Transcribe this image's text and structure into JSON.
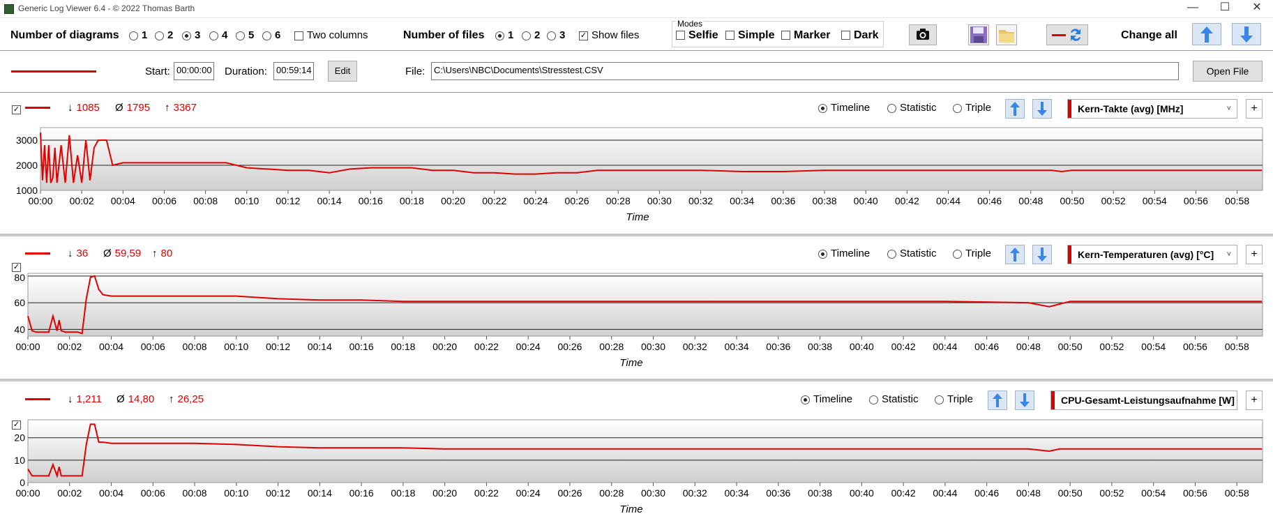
{
  "window": {
    "title": "Generic Log Viewer 6.4 - © 2022 Thomas Barth",
    "minimize": "—",
    "maximize": "☐",
    "close": "✕"
  },
  "toolbar": {
    "num_diagrams_label": "Number of diagrams",
    "diagram_options": [
      "1",
      "2",
      "3",
      "4",
      "5",
      "6"
    ],
    "diagram_selected": "3",
    "two_columns_label": "Two columns",
    "num_files_label": "Number of files",
    "file_options": [
      "1",
      "2",
      "3"
    ],
    "file_selected": "1",
    "show_files_label": "Show files",
    "modes_label": "Modes",
    "modes": [
      "Selfie",
      "Simple",
      "Marker",
      "Dark"
    ],
    "change_all_label": "Change all"
  },
  "filebar": {
    "start_label": "Start:",
    "start_value": "00:00:00",
    "duration_label": "Duration:",
    "duration_value": "00:59:14",
    "edit_label": "Edit",
    "file_label": "File:",
    "file_path": "C:\\Users\\NBC\\Documents\\Stresstest.CSV",
    "open_label": "Open File",
    "accent": "#e00000"
  },
  "panels": [
    {
      "min": "1085",
      "avg": "1795",
      "max": "3367",
      "min_sym": "↓",
      "avg_sym": "Ø",
      "max_sym": "↑",
      "mode_options": [
        "Timeline",
        "Statistic",
        "Triple"
      ],
      "mode_selected": "Timeline",
      "channel": "Kern-Takte (avg) [MHz]",
      "xlabel": "Time",
      "yticks": [
        "3000",
        "2000",
        "1000"
      ]
    },
    {
      "min": "36",
      "avg": "59,59",
      "max": "80",
      "min_sym": "↓",
      "avg_sym": "Ø",
      "max_sym": "↑",
      "mode_options": [
        "Timeline",
        "Statistic",
        "Triple"
      ],
      "mode_selected": "Timeline",
      "channel": "Kern-Temperaturen (avg) [°C]",
      "xlabel": "Time",
      "yticks": [
        "80",
        "60",
        "40"
      ]
    },
    {
      "min": "1,211",
      "avg": "14,80",
      "max": "26,25",
      "min_sym": "↓",
      "avg_sym": "Ø",
      "max_sym": "↑",
      "mode_options": [
        "Timeline",
        "Statistic",
        "Triple"
      ],
      "mode_selected": "Timeline",
      "channel": "CPU-Gesamt-Leistungsaufnahme [W]",
      "xlabel": "Time",
      "yticks": [
        "20",
        "10",
        "0"
      ]
    }
  ],
  "xticks": [
    "00:00",
    "00:02",
    "00:04",
    "00:06",
    "00:08",
    "00:10",
    "00:12",
    "00:14",
    "00:16",
    "00:18",
    "00:20",
    "00:22",
    "00:24",
    "00:26",
    "00:28",
    "00:30",
    "00:32",
    "00:34",
    "00:36",
    "00:38",
    "00:40",
    "00:42",
    "00:44",
    "00:46",
    "00:48",
    "00:50",
    "00:52",
    "00:54",
    "00:56",
    "00:58"
  ],
  "chart_data": [
    {
      "type": "line",
      "ylabel": "",
      "xlabel": "Time",
      "ylim": [
        1000,
        3500
      ],
      "x_unit": "minutes",
      "xlim": [
        0,
        59.23
      ],
      "x": [
        0,
        0.1,
        0.2,
        0.3,
        0.4,
        0.5,
        0.6,
        0.7,
        0.8,
        1.0,
        1.2,
        1.4,
        1.6,
        1.8,
        2.0,
        2.2,
        2.4,
        2.6,
        2.8,
        3.0,
        3.2,
        3.5,
        4,
        5,
        6,
        7,
        8,
        9,
        10,
        11,
        12,
        13,
        14,
        15,
        16,
        17,
        18,
        19,
        20,
        21,
        22,
        23,
        24,
        25,
        26,
        27,
        28,
        30,
        32,
        34,
        36,
        38,
        40,
        42,
        44,
        46,
        48,
        49,
        49.5,
        50,
        52,
        54,
        56,
        58,
        59.2
      ],
      "y": [
        3300,
        1400,
        2800,
        1300,
        2800,
        1300,
        1500,
        2700,
        1300,
        2800,
        1300,
        3200,
        1300,
        2400,
        1300,
        3000,
        1400,
        2700,
        3000,
        3000,
        3000,
        2000,
        2100,
        2100,
        2100,
        2100,
        2100,
        2100,
        1900,
        1850,
        1800,
        1800,
        1700,
        1850,
        1900,
        1900,
        1900,
        1800,
        1800,
        1700,
        1700,
        1650,
        1650,
        1700,
        1700,
        1800,
        1800,
        1800,
        1800,
        1750,
        1750,
        1800,
        1800,
        1800,
        1800,
        1800,
        1800,
        1800,
        1750,
        1800,
        1800,
        1800,
        1800,
        1800,
        1800
      ]
    },
    {
      "type": "line",
      "ylabel": "",
      "xlabel": "Time",
      "ylim": [
        35,
        82
      ],
      "x_unit": "minutes",
      "xlim": [
        0,
        59.23
      ],
      "x": [
        0,
        0.2,
        0.4,
        0.6,
        0.8,
        1.0,
        1.2,
        1.4,
        1.5,
        1.6,
        1.8,
        2.0,
        2.2,
        2.4,
        2.6,
        2.8,
        3.0,
        3.2,
        3.4,
        3.6,
        4,
        6,
        8,
        10,
        12,
        14,
        16,
        18,
        20,
        24,
        28,
        32,
        36,
        40,
        44,
        48,
        49,
        49.5,
        50,
        52,
        56,
        59.2
      ],
      "y": [
        50,
        39,
        38,
        38,
        38,
        38,
        50,
        39,
        47,
        39,
        38,
        38,
        38,
        38,
        37,
        63,
        79,
        80,
        70,
        66,
        65,
        65,
        65,
        65,
        63,
        62,
        62,
        61,
        61,
        61,
        61,
        61,
        61,
        61,
        61,
        60,
        57,
        59,
        61,
        61,
        61,
        61
      ]
    },
    {
      "type": "line",
      "ylabel": "",
      "xlabel": "Time",
      "ylim": [
        0,
        28
      ],
      "x_unit": "minutes",
      "xlim": [
        0,
        59.23
      ],
      "x": [
        0,
        0.2,
        0.4,
        0.6,
        0.8,
        1.0,
        1.2,
        1.4,
        1.5,
        1.6,
        1.8,
        2.0,
        2.2,
        2.4,
        2.6,
        2.8,
        3.0,
        3.2,
        3.4,
        3.6,
        4,
        6,
        8,
        10,
        12,
        14,
        16,
        18,
        20,
        24,
        28,
        32,
        36,
        40,
        44,
        48,
        49,
        49.5,
        50,
        52,
        56,
        59.2
      ],
      "y": [
        6,
        3,
        3,
        3,
        3,
        3,
        8,
        3,
        7,
        3,
        3,
        3,
        3,
        3,
        3,
        17,
        26,
        26,
        18,
        18,
        17.5,
        17.5,
        17.5,
        17,
        16,
        15.5,
        15.5,
        15.5,
        15,
        15,
        15,
        15,
        15,
        15,
        15,
        15,
        14,
        15,
        15,
        15,
        15,
        15
      ]
    }
  ]
}
